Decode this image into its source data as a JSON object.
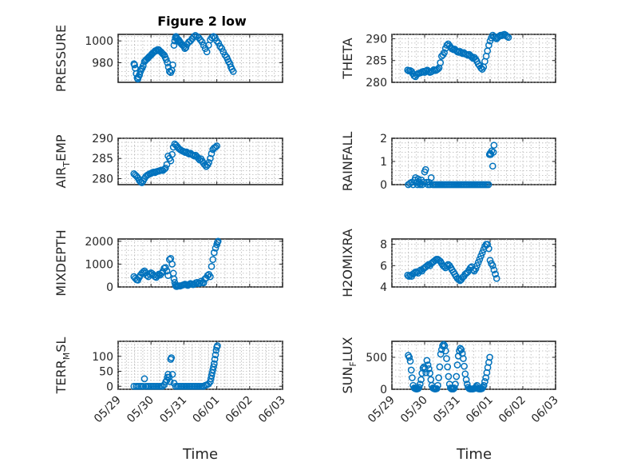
{
  "figure_title": "Figure 2 low",
  "xlabel_left": "Time",
  "xlabel_right": "Time",
  "chart_data": [
    {
      "id": "pressure",
      "type": "scatter",
      "ylabel": "PRESSURE",
      "ylim": [
        962,
        1006
      ],
      "yticks": [
        980,
        1000
      ],
      "ytick_labels": [
        "980",
        "1000"
      ],
      "xlim": [
        0,
        5
      ],
      "xticks": [
        0,
        1,
        2,
        3,
        4,
        5
      ],
      "x": [
        0.48,
        0.5,
        0.52,
        0.55,
        0.58,
        0.6,
        0.62,
        0.65,
        0.68,
        0.7,
        0.73,
        0.76,
        0.8,
        0.83,
        0.86,
        0.9,
        0.93,
        0.96,
        1.0,
        1.03,
        1.06,
        1.1,
        1.13,
        1.16,
        1.2,
        1.23,
        1.26,
        1.3,
        1.33,
        1.36,
        1.4,
        1.43,
        1.46,
        1.5,
        1.53,
        1.56,
        1.6,
        1.63,
        1.66,
        1.7,
        1.72,
        1.74,
        1.76,
        1.78,
        1.8,
        1.82,
        1.84,
        1.86,
        1.88,
        1.9,
        1.93,
        1.96,
        2.0,
        2.03,
        2.06,
        2.1,
        2.15,
        2.2,
        2.25,
        2.3,
        2.35,
        2.4,
        2.45,
        2.5,
        2.55,
        2.6,
        2.65,
        2.7,
        2.75,
        2.8,
        2.85,
        2.9,
        2.95,
        3.0,
        3.05,
        3.1,
        3.15,
        3.2,
        3.25,
        3.3,
        3.33,
        3.36,
        3.4,
        3.43,
        3.46,
        3.5
      ],
      "y": [
        979,
        978,
        975,
        970,
        966,
        965,
        967,
        969,
        972,
        974,
        975,
        977,
        981,
        982,
        983,
        984,
        985,
        986,
        987,
        988,
        989,
        990,
        991,
        991,
        992,
        992,
        991,
        990,
        989,
        988,
        987,
        985,
        983,
        980,
        976,
        972,
        971,
        973,
        978,
        996,
        1000,
        1003,
        1004,
        1003,
        1002,
        1000,
        1001,
        1000,
        999,
        998,
        997,
        996,
        995,
        993,
        994,
        997,
        999,
        1000,
        1002,
        1004,
        1005,
        1004,
        1003,
        1001,
        999,
        996,
        993,
        990,
        996,
        1001,
        1003,
        1004,
        1003,
        1000,
        998,
        995,
        993,
        990,
        987,
        985,
        983,
        981,
        979,
        976,
        974,
        972
      ]
    },
    {
      "id": "theta",
      "type": "scatter",
      "ylabel": "THETA",
      "ylim": [
        280,
        291
      ],
      "yticks": [
        280,
        285,
        290
      ],
      "ytick_labels": [
        "280",
        "285",
        "290"
      ],
      "xlim": [
        0,
        5
      ],
      "xticks": [
        0,
        1,
        2,
        3,
        4,
        5
      ],
      "x": [
        0.48,
        0.52,
        0.56,
        0.6,
        0.64,
        0.68,
        0.72,
        0.76,
        0.8,
        0.84,
        0.88,
        0.92,
        0.96,
        1.0,
        1.04,
        1.08,
        1.12,
        1.16,
        1.2,
        1.24,
        1.28,
        1.32,
        1.36,
        1.4,
        1.44,
        1.48,
        1.52,
        1.56,
        1.6,
        1.64,
        1.68,
        1.72,
        1.76,
        1.8,
        1.84,
        1.88,
        1.92,
        1.96,
        2.0,
        2.04,
        2.08,
        2.12,
        2.16,
        2.2,
        2.24,
        2.28,
        2.32,
        2.36,
        2.4,
        2.44,
        2.48,
        2.52,
        2.56,
        2.6,
        2.64,
        2.68,
        2.72,
        2.76,
        2.8,
        2.84,
        2.88,
        2.92,
        2.96,
        3.0,
        3.04,
        3.08,
        3.12,
        3.16,
        3.2,
        3.24,
        3.28,
        3.32,
        3.36,
        3.4,
        3.44,
        3.48,
        3.52,
        3.56
      ],
      "y": [
        282.8,
        282.6,
        282.7,
        282.5,
        282.0,
        281.5,
        281.3,
        281.8,
        282.0,
        282.1,
        282.2,
        282.4,
        282.5,
        282.3,
        282.6,
        282.8,
        282.5,
        282.3,
        282.4,
        282.6,
        282.9,
        282.7,
        282.8,
        283.0,
        283.3,
        284.5,
        286.0,
        286.3,
        286.8,
        287.8,
        288.5,
        288.8,
        288.4,
        288.0,
        287.7,
        287.5,
        287.6,
        287.3,
        287.0,
        286.9,
        287.1,
        286.8,
        286.6,
        286.8,
        286.5,
        286.4,
        286.2,
        286.4,
        286.1,
        285.8,
        285.5,
        285.7,
        285.3,
        284.8,
        284.2,
        283.8,
        283.3,
        283.0,
        283.5,
        284.8,
        286.0,
        287.2,
        288.5,
        289.5,
        290.2,
        290.8,
        290.5,
        290.2,
        290.0,
        290.3,
        290.6,
        290.8,
        290.7,
        290.9,
        291.0,
        290.8,
        290.5,
        290.3
      ]
    },
    {
      "id": "air_temp",
      "type": "scatter",
      "ylabel": "AIR_TEMP",
      "ylim": [
        278.5,
        290
      ],
      "yticks": [
        280,
        285,
        290
      ],
      "ytick_labels": [
        "280",
        "285",
        "290"
      ],
      "xlim": [
        0,
        5
      ],
      "xticks": [
        0,
        1,
        2,
        3,
        4,
        5
      ],
      "x": [
        0.48,
        0.52,
        0.56,
        0.6,
        0.64,
        0.68,
        0.72,
        0.76,
        0.8,
        0.84,
        0.88,
        0.92,
        0.96,
        1.0,
        1.04,
        1.08,
        1.12,
        1.16,
        1.2,
        1.24,
        1.28,
        1.32,
        1.36,
        1.4,
        1.44,
        1.48,
        1.52,
        1.56,
        1.6,
        1.64,
        1.68,
        1.72,
        1.76,
        1.8,
        1.84,
        1.88,
        1.92,
        1.96,
        2.0,
        2.04,
        2.08,
        2.12,
        2.16,
        2.2,
        2.24,
        2.28,
        2.32,
        2.36,
        2.4,
        2.44,
        2.48,
        2.52,
        2.56,
        2.6,
        2.64,
        2.68,
        2.72,
        2.76,
        2.8,
        2.84,
        2.88,
        2.92,
        2.96,
        3.0
      ],
      "y": [
        281.2,
        280.9,
        280.6,
        280.2,
        279.6,
        279.2,
        279.0,
        279.4,
        280.0,
        280.5,
        280.8,
        281.0,
        281.2,
        281.3,
        281.5,
        281.6,
        281.5,
        281.7,
        281.8,
        281.9,
        282.0,
        282.1,
        282.0,
        282.3,
        282.6,
        283.5,
        285.6,
        285.0,
        284.4,
        286.0,
        287.8,
        288.6,
        288.3,
        287.9,
        287.5,
        287.2,
        287.0,
        286.8,
        286.7,
        286.5,
        286.6,
        286.3,
        286.1,
        286.3,
        286.0,
        285.8,
        285.6,
        285.8,
        285.4,
        285.0,
        284.6,
        284.9,
        284.3,
        283.8,
        283.4,
        283.0,
        283.4,
        284.0,
        285.0,
        286.2,
        287.2,
        287.6,
        287.8,
        288.1
      ]
    },
    {
      "id": "rainfall",
      "type": "scatter",
      "ylabel": "RAINFALL",
      "ylim": [
        0,
        2
      ],
      "yticks": [
        0,
        1,
        2
      ],
      "ytick_labels": [
        "0",
        "1",
        "2"
      ],
      "xlim": [
        0,
        5
      ],
      "xticks": [
        0,
        1,
        2,
        3,
        4,
        5
      ],
      "x": [
        0.5,
        0.55,
        0.6,
        0.65,
        0.7,
        0.72,
        0.75,
        0.78,
        0.8,
        0.83,
        0.86,
        0.88,
        0.9,
        0.93,
        0.96,
        1.0,
        1.03,
        1.06,
        1.1,
        1.13,
        1.16,
        1.2,
        1.25,
        1.3,
        1.35,
        1.4,
        1.45,
        1.5,
        1.55,
        1.6,
        1.65,
        1.7,
        1.75,
        1.8,
        1.85,
        1.9,
        1.95,
        2.0,
        2.05,
        2.1,
        2.15,
        2.2,
        2.25,
        2.3,
        2.35,
        2.4,
        2.45,
        2.5,
        2.55,
        2.6,
        2.65,
        2.7,
        2.75,
        2.8,
        2.85,
        2.9,
        2.95,
        2.98,
        3.0,
        3.02,
        3.05,
        3.08,
        3.1,
        3.12
      ],
      "y": [
        0,
        0.05,
        0.1,
        0,
        0.2,
        0.3,
        0.1,
        0,
        0.25,
        0.1,
        0,
        0.05,
        0.2,
        0,
        0.1,
        0.55,
        0.65,
        0.1,
        0,
        0.1,
        0,
        0.3,
        0,
        0,
        0,
        0,
        0,
        0,
        0,
        0,
        0,
        0,
        0,
        0,
        0,
        0,
        0,
        0,
        0,
        0,
        0,
        0,
        0,
        0,
        0,
        0,
        0,
        0,
        0,
        0,
        0,
        0,
        0,
        0,
        0,
        0,
        0,
        1.3,
        1.35,
        1.3,
        1.45,
        0.8,
        1.4,
        1.7
      ]
    },
    {
      "id": "mixdepth",
      "type": "scatter",
      "ylabel": "MIXDEPTH",
      "ylim": [
        0,
        2100
      ],
      "yticks": [
        0,
        1000,
        2000
      ],
      "ytick_labels": [
        "0",
        "1000",
        "2000"
      ],
      "xlim": [
        0,
        5
      ],
      "xticks": [
        0,
        1,
        2,
        3,
        4,
        5
      ],
      "x": [
        0.48,
        0.52,
        0.56,
        0.6,
        0.64,
        0.68,
        0.72,
        0.76,
        0.8,
        0.84,
        0.88,
        0.92,
        0.96,
        1.0,
        1.04,
        1.08,
        1.12,
        1.16,
        1.2,
        1.24,
        1.28,
        1.32,
        1.36,
        1.4,
        1.44,
        1.48,
        1.52,
        1.56,
        1.6,
        1.64,
        1.68,
        1.7,
        1.72,
        1.74,
        1.76,
        1.78,
        1.8,
        1.84,
        1.88,
        1.92,
        1.96,
        2.0,
        2.04,
        2.08,
        2.12,
        2.16,
        2.2,
        2.24,
        2.28,
        2.32,
        2.36,
        2.4,
        2.44,
        2.48,
        2.52,
        2.56,
        2.6,
        2.64,
        2.68,
        2.72,
        2.76,
        2.8,
        2.84,
        2.88,
        2.92,
        2.96,
        3.0,
        3.02,
        3.04
      ],
      "y": [
        450,
        380,
        320,
        300,
        420,
        520,
        600,
        650,
        700,
        620,
        500,
        450,
        560,
        620,
        580,
        520,
        450,
        420,
        500,
        560,
        520,
        600,
        680,
        820,
        850,
        700,
        500,
        1200,
        1250,
        1000,
        600,
        350,
        200,
        80,
        30,
        20,
        30,
        50,
        40,
        60,
        80,
        100,
        120,
        90,
        70,
        110,
        150,
        130,
        100,
        120,
        180,
        200,
        150,
        160,
        250,
        200,
        180,
        350,
        400,
        500,
        550,
        450,
        900,
        1200,
        1500,
        1700,
        1850,
        1950,
        2000
      ]
    },
    {
      "id": "h2omixra",
      "type": "scatter",
      "ylabel": "H2OMIXRA",
      "ylim": [
        4,
        8.5
      ],
      "yticks": [
        4,
        6,
        8
      ],
      "ytick_labels": [
        "4",
        "6",
        "8"
      ],
      "xlim": [
        0,
        5
      ],
      "xticks": [
        0,
        1,
        2,
        3,
        4,
        5
      ],
      "x": [
        0.48,
        0.52,
        0.56,
        0.6,
        0.64,
        0.68,
        0.72,
        0.76,
        0.8,
        0.84,
        0.88,
        0.92,
        0.96,
        1.0,
        1.04,
        1.08,
        1.12,
        1.16,
        1.2,
        1.24,
        1.28,
        1.32,
        1.36,
        1.4,
        1.44,
        1.48,
        1.52,
        1.56,
        1.6,
        1.64,
        1.68,
        1.72,
        1.76,
        1.8,
        1.84,
        1.88,
        1.92,
        1.96,
        2.0,
        2.04,
        2.08,
        2.12,
        2.16,
        2.2,
        2.24,
        2.28,
        2.32,
        2.36,
        2.4,
        2.44,
        2.48,
        2.52,
        2.56,
        2.6,
        2.64,
        2.68,
        2.72,
        2.76,
        2.8,
        2.84,
        2.88,
        2.92,
        2.96,
        3.0,
        3.04,
        3.08,
        3.12,
        3.16,
        3.2
      ],
      "y": [
        5.1,
        5.0,
        5.1,
        5.0,
        5.2,
        5.3,
        5.4,
        5.4,
        5.3,
        5.5,
        5.6,
        5.5,
        5.7,
        5.8,
        5.9,
        6.0,
        6.1,
        6.0,
        6.2,
        6.3,
        6.4,
        6.5,
        6.6,
        6.6,
        6.5,
        6.4,
        6.2,
        6.0,
        5.9,
        5.8,
        6.0,
        6.1,
        6.0,
        5.8,
        5.6,
        5.4,
        5.2,
        5.0,
        4.8,
        4.7,
        4.6,
        4.7,
        4.9,
        5.0,
        5.2,
        5.3,
        5.4,
        5.6,
        5.8,
        5.9,
        5.6,
        5.5,
        5.7,
        6.0,
        6.3,
        6.6,
        6.9,
        7.2,
        7.5,
        7.8,
        8.0,
        8.0,
        7.6,
        6.5,
        6.2,
        6.0,
        5.6,
        5.2,
        4.8
      ]
    },
    {
      "id": "terr_msl",
      "type": "scatter",
      "ylabel": "TERR_MSL",
      "ylim": [
        -10,
        150
      ],
      "yticks": [
        0,
        50,
        100
      ],
      "ytick_labels": [
        "0",
        "50",
        "100"
      ],
      "xlim": [
        0,
        5
      ],
      "xticks": [
        0,
        1,
        2,
        3,
        4,
        5
      ],
      "x": [
        0.48,
        0.55,
        0.6,
        0.65,
        0.7,
        0.75,
        0.8,
        0.85,
        0.9,
        0.95,
        1.0,
        1.05,
        1.1,
        1.15,
        1.2,
        1.25,
        1.3,
        1.35,
        1.4,
        1.45,
        1.48,
        1.5,
        1.52,
        1.55,
        1.58,
        1.6,
        1.62,
        1.65,
        1.7,
        1.75,
        1.8,
        1.85,
        1.9,
        1.95,
        2.0,
        2.05,
        2.1,
        2.15,
        2.2,
        2.25,
        2.3,
        2.35,
        2.4,
        2.45,
        2.5,
        2.55,
        2.6,
        2.65,
        2.7,
        2.75,
        2.8,
        2.82,
        2.84,
        2.86,
        2.88,
        2.9,
        2.92,
        2.94,
        2.96,
        2.98,
        3.0,
        3.02
      ],
      "y": [
        0,
        0,
        0,
        0,
        0,
        0,
        25,
        0,
        0,
        0,
        0,
        0,
        0,
        0,
        0,
        0,
        0,
        0,
        5,
        15,
        20,
        30,
        40,
        30,
        15,
        90,
        95,
        40,
        10,
        0,
        0,
        0,
        0,
        0,
        0,
        0,
        0,
        0,
        0,
        0,
        0,
        0,
        0,
        0,
        0,
        0,
        0,
        3,
        5,
        8,
        15,
        25,
        35,
        45,
        55,
        65,
        75,
        90,
        105,
        120,
        130,
        135
      ]
    },
    {
      "id": "sun_flux",
      "type": "scatter",
      "ylabel": "SUN_FLUX",
      "ylim": [
        0,
        750
      ],
      "yticks": [
        0,
        500
      ],
      "ytick_labels": [
        "0",
        "500"
      ],
      "xlim": [
        0,
        5
      ],
      "xticks": [
        0,
        1,
        2,
        3,
        4,
        5
      ],
      "x": [
        0.5,
        0.53,
        0.56,
        0.59,
        0.62,
        0.65,
        0.68,
        0.71,
        0.74,
        0.77,
        0.8,
        0.83,
        0.86,
        0.89,
        0.92,
        0.95,
        0.98,
        1.01,
        1.04,
        1.07,
        1.1,
        1.13,
        1.16,
        1.19,
        1.22,
        1.25,
        1.28,
        1.31,
        1.34,
        1.37,
        1.4,
        1.43,
        1.46,
        1.49,
        1.52,
        1.55,
        1.58,
        1.61,
        1.64,
        1.67,
        1.7,
        1.73,
        1.76,
        1.79,
        1.82,
        1.85,
        1.88,
        1.91,
        1.94,
        1.97,
        2.0,
        2.03,
        2.06,
        2.09,
        2.12,
        2.15,
        2.18,
        2.21,
        2.24,
        2.27,
        2.3,
        2.33,
        2.36,
        2.39,
        2.42,
        2.45,
        2.48,
        2.51,
        2.54,
        2.57,
        2.6,
        2.63,
        2.66,
        2.69,
        2.72,
        2.75,
        2.78,
        2.81,
        2.84,
        2.87,
        2.9,
        2.93,
        2.96,
        2.99
      ],
      "y": [
        530,
        500,
        440,
        300,
        180,
        60,
        20,
        10,
        5,
        5,
        10,
        30,
        80,
        150,
        250,
        330,
        350,
        320,
        260,
        450,
        380,
        320,
        250,
        150,
        60,
        20,
        10,
        5,
        5,
        10,
        60,
        180,
        350,
        550,
        620,
        680,
        700,
        680,
        600,
        480,
        350,
        200,
        80,
        20,
        5,
        5,
        5,
        20,
        80,
        200,
        380,
        520,
        600,
        640,
        620,
        560,
        480,
        360,
        240,
        150,
        80,
        30,
        10,
        5,
        5,
        5,
        5,
        10,
        20,
        40,
        60,
        10,
        5,
        5,
        5,
        10,
        30,
        60,
        120,
        180,
        260,
        340,
        420,
        500
      ]
    }
  ],
  "date_ticks": [
    "05/29",
    "05/30",
    "05/31",
    "06/01",
    "06/02",
    "06/03"
  ]
}
